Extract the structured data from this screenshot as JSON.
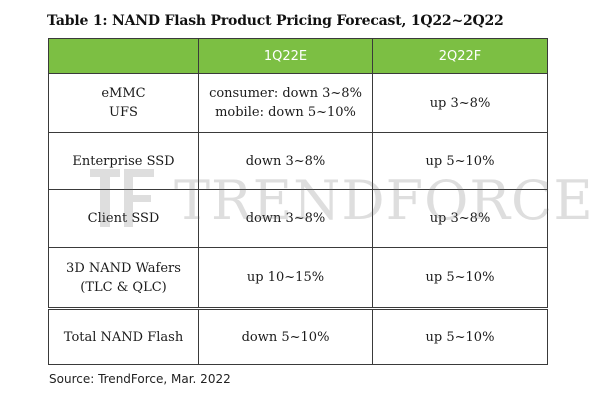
{
  "title": "Table 1: NAND Flash Product Pricing Forecast, 1Q22~2Q22",
  "headers": [
    "",
    "1Q22E",
    "2Q22F"
  ],
  "rows": [
    {
      "product": [
        "eMMC",
        "UFS"
      ],
      "q1": [
        "consumer: down 3~8%",
        "mobile: down 5~10%"
      ],
      "q2": "up 3~8%"
    },
    {
      "product": [
        "Enterprise SSD"
      ],
      "q1": [
        "down 3~8%"
      ],
      "q2": "up 5~10%"
    },
    {
      "product": [
        "Client SSD"
      ],
      "q1": [
        "down 3~8%"
      ],
      "q2": "up 3~8%"
    },
    {
      "product": [
        "3D NAND Wafers",
        "(TLC & QLC)"
      ],
      "q1": [
        "up 10~15%"
      ],
      "q2": "up 5~10%"
    },
    {
      "product": [
        "Total NAND Flash"
      ],
      "q1": [
        "down 5~10%"
      ],
      "q2": "up 5~10%"
    }
  ],
  "watermark": "TRENDFORCE",
  "source": "Source: TrendForce, Mar. 2022",
  "colors": {
    "header_bg": "#7cbf43",
    "header_text": "#ffffff",
    "border": "#3a3a3a"
  }
}
